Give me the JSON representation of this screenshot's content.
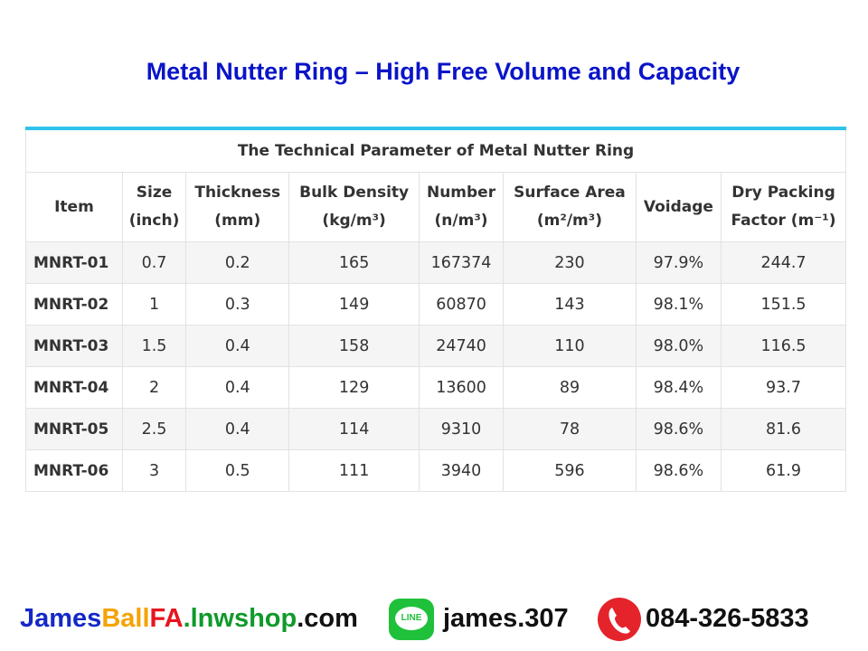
{
  "title": "Metal Nutter Ring – High Free Volume and Capacity",
  "table": {
    "caption": "The Technical Parameter of Metal Nutter Ring",
    "header": [
      [
        "Item"
      ],
      [
        "Size",
        "(inch)"
      ],
      [
        "Thickness",
        "(mm)"
      ],
      [
        "Bulk Density",
        "(kg/m³)"
      ],
      [
        "Number",
        "(n/m³)"
      ],
      [
        "Surface Area",
        "(m²/m³)"
      ],
      [
        "Voidage"
      ],
      [
        "Dry Packing",
        "Factor (m⁻¹)"
      ]
    ],
    "rows": [
      [
        "MNRT-01",
        "0.7",
        "0.2",
        "165",
        "167374",
        "230",
        "97.9%",
        "244.7"
      ],
      [
        "MNRT-02",
        "1",
        "0.3",
        "149",
        "60870",
        "143",
        "98.1%",
        "151.5"
      ],
      [
        "MNRT-03",
        "1.5",
        "0.4",
        "158",
        "24740",
        "110",
        "98.0%",
        "116.5"
      ],
      [
        "MNRT-04",
        "2",
        "0.4",
        "129",
        "13600",
        "89",
        "98.4%",
        "93.7"
      ],
      [
        "MNRT-05",
        "2.5",
        "0.4",
        "114",
        "9310",
        "78",
        "98.6%",
        "81.6"
      ],
      [
        "MNRT-06",
        "3",
        "0.5",
        "111",
        "3940",
        "596",
        "98.6%",
        "61.9"
      ]
    ]
  },
  "footer": {
    "website": [
      {
        "text": "James",
        "color": "#1428c8"
      },
      {
        "text": "Ball",
        "color": "#f5a300"
      },
      {
        "text": "FA",
        "color": "#e8141e"
      },
      {
        "text": ".lnwshop",
        "color": "#0f9a2a"
      },
      {
        "text": ".com",
        "color": "#111111"
      }
    ],
    "line_icon": "LINE",
    "line_id": "james.307",
    "phone": "084-326-5833"
  }
}
